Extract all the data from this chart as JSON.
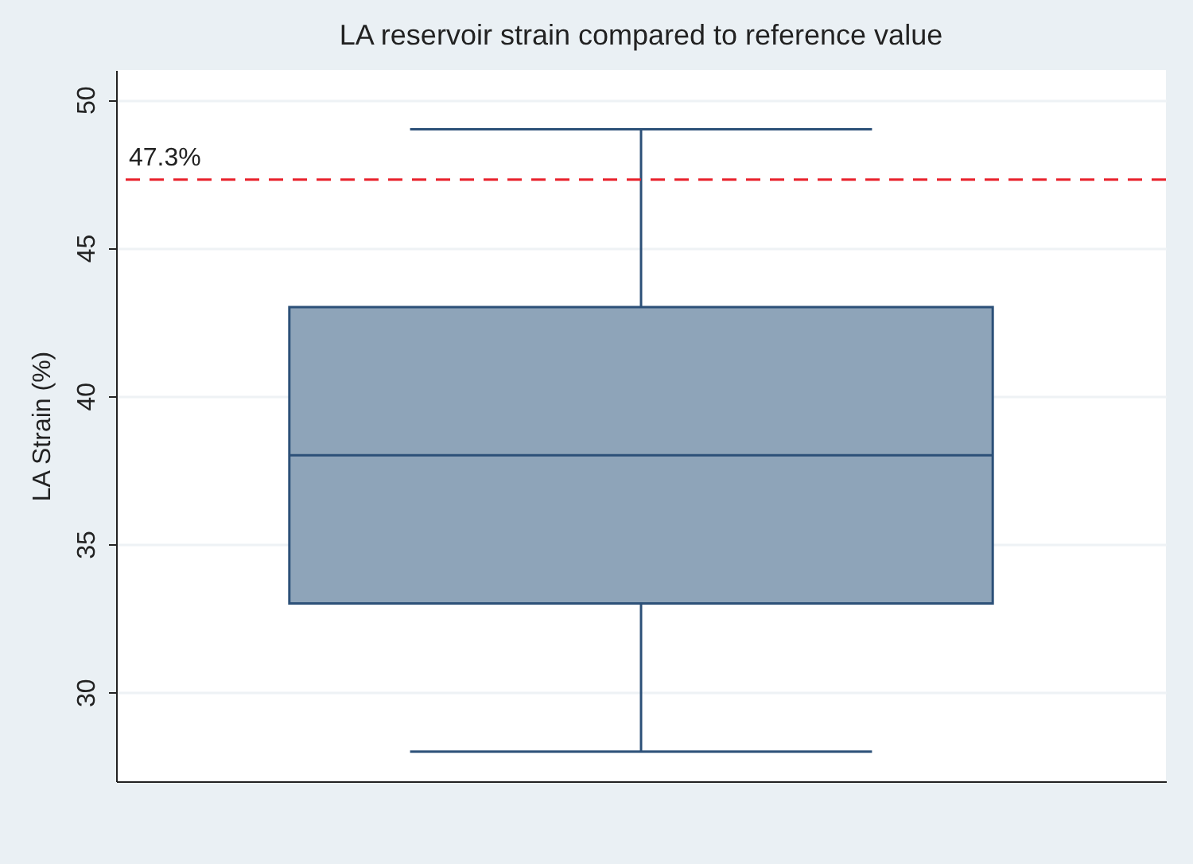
{
  "chart_data": {
    "type": "box",
    "title": "LA reservoir strain compared to reference value",
    "ylabel": "LA Strain (%)",
    "categories": [
      null
    ],
    "boxes": [
      {
        "low": 28,
        "q1": 33,
        "median": 38,
        "q3": 43,
        "high": 49
      }
    ],
    "ylim": [
      27,
      51
    ],
    "yticks": [
      30,
      35,
      40,
      45,
      50
    ],
    "grid": "y",
    "ref_lines": [
      {
        "axis": "y",
        "value": 47.3,
        "label": "47.3%",
        "color": "#e8202a",
        "line_style": "dashed"
      }
    ]
  }
}
